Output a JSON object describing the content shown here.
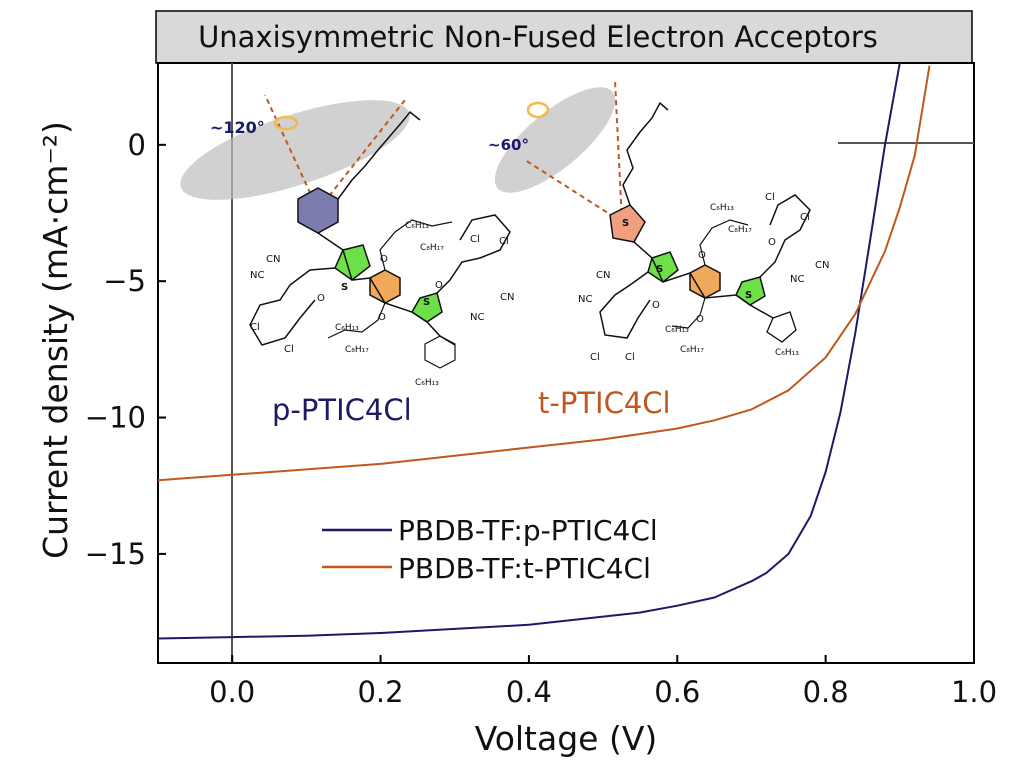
{
  "chart_data": {
    "type": "line",
    "title": "Unaxisymmetric Non-Fused Electron Acceptors",
    "xlabel": "Voltage (V)",
    "ylabel": "Current density (mA·cm⁻²)",
    "xlim": [
      -0.1,
      1.0
    ],
    "ylim": [
      -19,
      3
    ],
    "xticks": [
      0.0,
      0.2,
      0.4,
      0.6,
      0.8,
      1.0
    ],
    "xtick_labels": [
      "0.0",
      "0.2",
      "0.4",
      "0.6",
      "0.8",
      "1.0"
    ],
    "yticks": [
      0,
      -5,
      -10,
      -15
    ],
    "ytick_labels": [
      "0",
      "−5",
      "−10",
      "−15"
    ],
    "grid": false,
    "legend_position": "lower-left",
    "series": [
      {
        "name": "PBDB-TF:p-PTIC4Cl",
        "color": "#1a1a66",
        "x": [
          -0.1,
          0.0,
          0.1,
          0.2,
          0.3,
          0.4,
          0.5,
          0.55,
          0.6,
          0.65,
          0.7,
          0.72,
          0.75,
          0.78,
          0.8,
          0.82,
          0.84,
          0.86,
          0.88,
          0.9,
          0.91
        ],
        "y": [
          -18.1,
          -18.05,
          -18.0,
          -17.9,
          -17.75,
          -17.6,
          -17.3,
          -17.15,
          -16.9,
          -16.6,
          -16.0,
          -15.7,
          -15.0,
          -13.6,
          -12.0,
          -9.8,
          -6.9,
          -3.5,
          0.0,
          3.0,
          4.0
        ]
      },
      {
        "name": "PBDB-TF:t-PTIC4Cl",
        "color": "#c0581e",
        "x": [
          -0.1,
          0.0,
          0.1,
          0.2,
          0.3,
          0.4,
          0.5,
          0.6,
          0.65,
          0.7,
          0.75,
          0.8,
          0.84,
          0.88,
          0.9,
          0.92,
          0.94
        ],
        "y": [
          -12.3,
          -12.1,
          -11.9,
          -11.7,
          -11.4,
          -11.1,
          -10.8,
          -10.4,
          -10.1,
          -9.7,
          -9.0,
          -7.8,
          -6.2,
          -3.9,
          -2.3,
          -0.4,
          2.9
        ]
      }
    ],
    "annotations": [
      {
        "text": "p-PTIC4Cl",
        "color": "#1a1a66"
      },
      {
        "text": "t-PTIC4Cl",
        "color": "#c0581e"
      },
      {
        "text": "~120°",
        "color": "#1a1a66"
      },
      {
        "text": "~60°",
        "color": "#1a1a66"
      }
    ],
    "molecule_labels": {
      "left": [
        "NC",
        "CN",
        "O",
        "S",
        "S",
        "C₆H₁₃",
        "C₈H₁₇",
        "C₆H₁₃",
        "C₈H₁₇",
        "Cl",
        "Cl",
        "Cl",
        "Cl",
        "CN",
        "NC",
        "O",
        "O",
        "O",
        "C₆H₁₃"
      ],
      "right": [
        "NC",
        "CN",
        "O",
        "S",
        "S",
        "S",
        "C₆H₁₃",
        "C₈H₁₇",
        "C₆H₁₃",
        "C₈H₁₇",
        "Cl",
        "Cl",
        "Cl",
        "Cl",
        "CN",
        "NC",
        "O",
        "O",
        "O",
        "C₆H₁₃"
      ]
    }
  }
}
